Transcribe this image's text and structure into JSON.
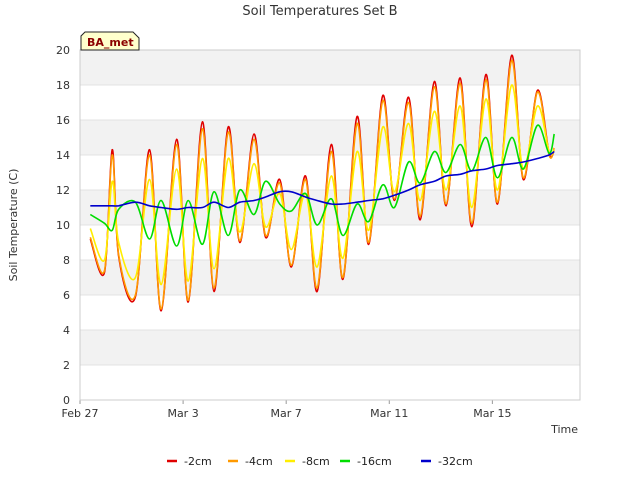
{
  "chart_data": {
    "type": "line",
    "title": "Soil Temperatures Set B",
    "xlabel": "Time",
    "ylabel": "Soil Temperature (C)",
    "site_tag": "BA_met",
    "xlim": [
      0,
      19.4
    ],
    "ylim": [
      0,
      20
    ],
    "x_ticks": [
      {
        "day": 0,
        "label": "Feb 27"
      },
      {
        "day": 4,
        "label": "Mar 3"
      },
      {
        "day": 8,
        "label": "Mar 7"
      },
      {
        "day": 12,
        "label": "Mar 11"
      },
      {
        "day": 16,
        "label": "Mar 15"
      }
    ],
    "y_ticks": [
      0,
      2,
      4,
      6,
      8,
      10,
      12,
      14,
      16,
      18,
      20
    ],
    "grid": "horizontal bands",
    "legend_position": "bottom",
    "x": [
      0.4,
      0.95,
      1.25,
      1.5,
      2.15,
      2.7,
      3.15,
      3.75,
      4.2,
      4.75,
      5.2,
      5.75,
      6.2,
      6.75,
      7.2,
      7.75,
      8.2,
      8.75,
      9.2,
      9.75,
      10.2,
      10.75,
      11.2,
      11.75,
      12.2,
      12.75,
      13.2,
      13.75,
      14.2,
      14.75,
      15.2,
      15.75,
      16.2,
      16.75,
      17.2,
      17.75,
      18.2,
      18.4
    ],
    "series": [
      {
        "name": "-2cm",
        "color": "#e00000",
        "values": [
          9.2,
          7.3,
          14.3,
          8.2,
          5.9,
          14.3,
          5.1,
          14.9,
          5.6,
          15.9,
          6.2,
          15.6,
          9.0,
          15.2,
          9.3,
          12.6,
          7.6,
          12.8,
          6.2,
          14.6,
          6.9,
          16.2,
          8.9,
          17.4,
          11.4,
          17.3,
          10.3,
          18.2,
          11.1,
          18.4,
          9.9,
          18.6,
          11.2,
          19.7,
          12.6,
          17.7,
          14.1,
          14.3
        ]
      },
      {
        "name": "-4cm",
        "color": "#ff9900",
        "values": [
          9.3,
          7.4,
          14.0,
          8.3,
          6.0,
          14.0,
          5.2,
          14.6,
          5.7,
          15.5,
          6.4,
          15.3,
          9.1,
          14.9,
          9.4,
          12.4,
          7.7,
          12.6,
          6.4,
          14.2,
          7.0,
          15.8,
          9.0,
          17.1,
          11.5,
          17.0,
          10.5,
          17.9,
          11.2,
          18.1,
          10.1,
          18.3,
          11.3,
          19.4,
          12.7,
          17.6,
          14.0,
          14.4
        ]
      },
      {
        "name": "-8cm",
        "color": "#ffee00",
        "values": [
          9.8,
          8.0,
          12.5,
          9.0,
          7.0,
          12.6,
          6.6,
          13.2,
          6.8,
          13.8,
          7.5,
          13.8,
          9.6,
          13.5,
          9.9,
          11.8,
          8.6,
          11.8,
          7.6,
          12.8,
          8.1,
          14.2,
          9.7,
          15.6,
          11.9,
          15.8,
          11.4,
          16.5,
          12.0,
          16.8,
          11.0,
          17.2,
          12.0,
          18.0,
          13.2,
          16.8,
          14.2,
          14.3
        ]
      },
      {
        "name": "-16cm",
        "color": "#00dd00",
        "values": [
          10.6,
          10.1,
          9.7,
          10.9,
          11.3,
          9.2,
          11.4,
          8.8,
          11.4,
          8.9,
          11.9,
          9.4,
          12.0,
          10.6,
          12.5,
          11.2,
          10.8,
          11.8,
          10.0,
          11.5,
          9.4,
          11.2,
          10.2,
          12.3,
          11.0,
          13.6,
          12.4,
          14.2,
          13.0,
          14.6,
          13.1,
          15.0,
          12.7,
          15.0,
          13.2,
          15.7,
          14.1,
          15.2
        ]
      },
      {
        "name": "-32cm",
        "color": "#0000cc",
        "values": [
          11.1,
          11.1,
          11.1,
          11.1,
          11.3,
          11.1,
          11.0,
          10.9,
          11.0,
          11.0,
          11.3,
          11.0,
          11.3,
          11.4,
          11.6,
          11.9,
          11.9,
          11.6,
          11.4,
          11.2,
          11.2,
          11.3,
          11.4,
          11.5,
          11.7,
          12.0,
          12.3,
          12.5,
          12.8,
          12.9,
          13.1,
          13.2,
          13.4,
          13.5,
          13.6,
          13.8,
          14.0,
          14.2
        ]
      }
    ]
  }
}
